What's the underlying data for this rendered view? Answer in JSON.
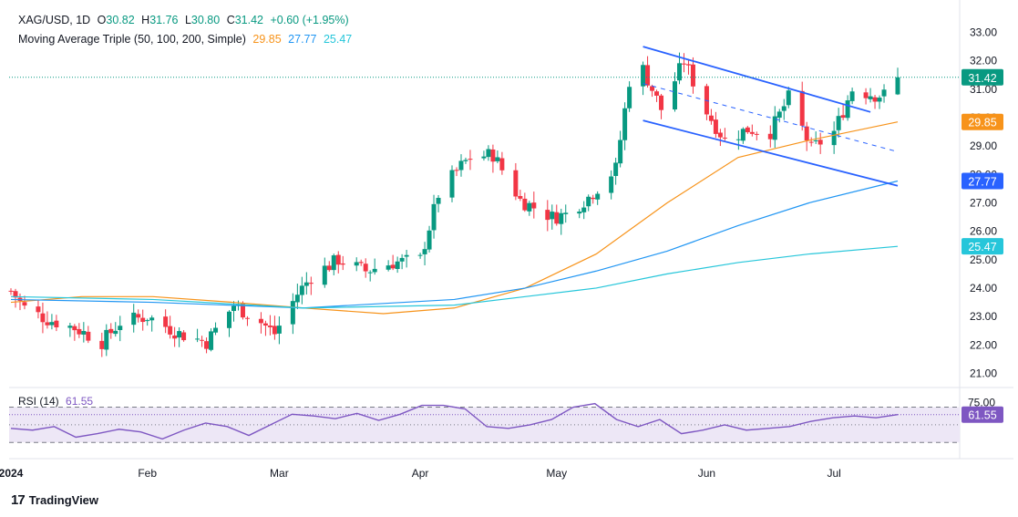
{
  "header": {
    "symbol": "XAG/USD, 1D",
    "o_label": "O",
    "o_value": "30.82",
    "h_label": "H",
    "h_value": "31.76",
    "l_label": "L",
    "l_value": "30.80",
    "c_label": "C",
    "c_value": "31.42",
    "change": "+0.60 (+1.95%)",
    "ma_label": "Moving Average Triple (50, 100, 200, Simple)",
    "ma50_value": "29.85",
    "ma100_value": "27.77",
    "ma200_value": "25.47",
    "rsi_label": "RSI (14)",
    "rsi_value": "61.55"
  },
  "branding": {
    "logo": "17",
    "name": "TradingView"
  },
  "colors": {
    "up": "#089981",
    "down": "#f23645",
    "ma50": "#f7931a",
    "ma100": "#2196f3",
    "ma200": "#26c6da",
    "channel": "#2962ff",
    "rsi": "#7e57c2",
    "rsi_band": "#ede7f6"
  },
  "chart_data": [
    {
      "type": "candlestick",
      "title": "XAG/USD, 1D",
      "x_labels": [
        "2024",
        "Feb",
        "Mar",
        "Apr",
        "May",
        "Jun",
        "Jul"
      ],
      "y_ticks": [
        "33.00",
        "32.00",
        "31.00",
        "30.00",
        "29.00",
        "28.00",
        "27.00",
        "26.00",
        "25.00",
        "24.00",
        "23.00",
        "22.00",
        "21.00"
      ],
      "ylim": [
        20.5,
        33.5
      ],
      "last_price": 31.42,
      "price_labels": [
        {
          "name": "price",
          "value": 31.42,
          "text": "31.42",
          "color": "#089981"
        },
        {
          "name": "sma50",
          "value": 29.85,
          "text": "29.85",
          "color": "#f7931a"
        },
        {
          "name": "sma100",
          "value": 27.77,
          "text": "27.77",
          "color": "#2962ff"
        },
        {
          "name": "sma200",
          "value": 25.47,
          "text": "25.47",
          "color": "#26c6da"
        }
      ],
      "ohlc_anchors": [
        {
          "date": "2024-01-02",
          "close": 23.9
        },
        {
          "date": "2024-01-05",
          "close": 23.3
        },
        {
          "date": "2024-01-10",
          "close": 22.9
        },
        {
          "date": "2024-01-16",
          "close": 22.6
        },
        {
          "date": "2024-01-22",
          "close": 22.1
        },
        {
          "date": "2024-01-26",
          "close": 22.8
        },
        {
          "date": "2024-02-01",
          "close": 23.0
        },
        {
          "date": "2024-02-08",
          "close": 22.4
        },
        {
          "date": "2024-02-14",
          "close": 22.1
        },
        {
          "date": "2024-02-20",
          "close": 23.4
        },
        {
          "date": "2024-02-26",
          "close": 22.8
        },
        {
          "date": "2024-02-29",
          "close": 22.4
        },
        {
          "date": "2024-03-05",
          "close": 23.8
        },
        {
          "date": "2024-03-08",
          "close": 24.4
        },
        {
          "date": "2024-03-14",
          "close": 25.0
        },
        {
          "date": "2024-03-20",
          "close": 24.6
        },
        {
          "date": "2024-03-26",
          "close": 24.9
        },
        {
          "date": "2024-04-01",
          "close": 25.0
        },
        {
          "date": "2024-04-05",
          "close": 27.3
        },
        {
          "date": "2024-04-10",
          "close": 28.3
        },
        {
          "date": "2024-04-12",
          "close": 28.6
        },
        {
          "date": "2024-04-17",
          "close": 28.7
        },
        {
          "date": "2024-04-23",
          "close": 27.1
        },
        {
          "date": "2024-04-30",
          "close": 26.5
        },
        {
          "date": "2024-05-03",
          "close": 26.6
        },
        {
          "date": "2024-05-08",
          "close": 27.2
        },
        {
          "date": "2024-05-14",
          "close": 28.2
        },
        {
          "date": "2024-05-17",
          "close": 31.3
        },
        {
          "date": "2024-05-20",
          "close": 31.7
        },
        {
          "date": "2024-05-24",
          "close": 30.3
        },
        {
          "date": "2024-05-29",
          "close": 32.0
        },
        {
          "date": "2024-06-03",
          "close": 30.2
        },
        {
          "date": "2024-06-07",
          "close": 29.2
        },
        {
          "date": "2024-06-12",
          "close": 29.6
        },
        {
          "date": "2024-06-17",
          "close": 29.5
        },
        {
          "date": "2024-06-21",
          "close": 30.7
        },
        {
          "date": "2024-06-26",
          "close": 28.9
        },
        {
          "date": "2024-07-01",
          "close": 29.5
        },
        {
          "date": "2024-07-05",
          "close": 31.0
        },
        {
          "date": "2024-07-10",
          "close": 30.8
        },
        {
          "date": "2024-07-12",
          "close": 30.8
        },
        {
          "date": "2024-07-15",
          "close": 31.42
        }
      ],
      "moving_averages": [
        {
          "name": "SMA 50",
          "points": [
            [
              0,
              23.5
            ],
            [
              0.08,
              23.7
            ],
            [
              0.16,
              23.7
            ],
            [
              0.25,
              23.5
            ],
            [
              0.33,
              23.3
            ],
            [
              0.42,
              23.1
            ],
            [
              0.5,
              23.3
            ],
            [
              0.58,
              24.0
            ],
            [
              0.66,
              25.2
            ],
            [
              0.74,
              27.0
            ],
            [
              0.82,
              28.6
            ],
            [
              0.9,
              29.2
            ],
            [
              1.0,
              29.85
            ]
          ]
        },
        {
          "name": "SMA 100",
          "points": [
            [
              0,
              23.6
            ],
            [
              0.16,
              23.5
            ],
            [
              0.33,
              23.3
            ],
            [
              0.5,
              23.6
            ],
            [
              0.58,
              24.0
            ],
            [
              0.66,
              24.6
            ],
            [
              0.74,
              25.3
            ],
            [
              0.82,
              26.2
            ],
            [
              0.9,
              27.0
            ],
            [
              1.0,
              27.77
            ]
          ]
        },
        {
          "name": "SMA 200",
          "points": [
            [
              0,
              23.7
            ],
            [
              0.16,
              23.6
            ],
            [
              0.33,
              23.3
            ],
            [
              0.5,
              23.4
            ],
            [
              0.58,
              23.7
            ],
            [
              0.66,
              24.0
            ],
            [
              0.74,
              24.5
            ],
            [
              0.82,
              24.9
            ],
            [
              0.9,
              25.2
            ],
            [
              1.0,
              25.47
            ]
          ]
        }
      ],
      "channel": {
        "upper": [
          [
            "2024-05-20",
            32.5
          ],
          [
            "2024-07-09",
            30.2
          ]
        ],
        "lower": [
          [
            "2024-05-20",
            29.9
          ],
          [
            "2024-07-15",
            27.6
          ]
        ],
        "mid": [
          [
            "2024-05-20",
            31.2
          ],
          [
            "2024-07-15",
            28.8
          ]
        ]
      }
    },
    {
      "type": "line",
      "title": "RSI (14)",
      "y_ticks": [
        "75.00",
        "61.55"
      ],
      "levels": [
        70,
        50,
        30
      ],
      "last_value": 61.55,
      "series": [
        {
          "name": "RSI",
          "values": [
            46,
            44,
            48,
            36,
            40,
            45,
            42,
            34,
            44,
            52,
            48,
            38,
            50,
            62,
            60,
            57,
            63,
            55,
            62,
            72,
            72,
            68,
            48,
            46,
            50,
            56,
            70,
            74,
            56,
            48,
            56,
            40,
            44,
            50,
            44,
            46,
            48,
            54,
            58,
            60,
            58,
            61.55
          ]
        }
      ]
    }
  ]
}
